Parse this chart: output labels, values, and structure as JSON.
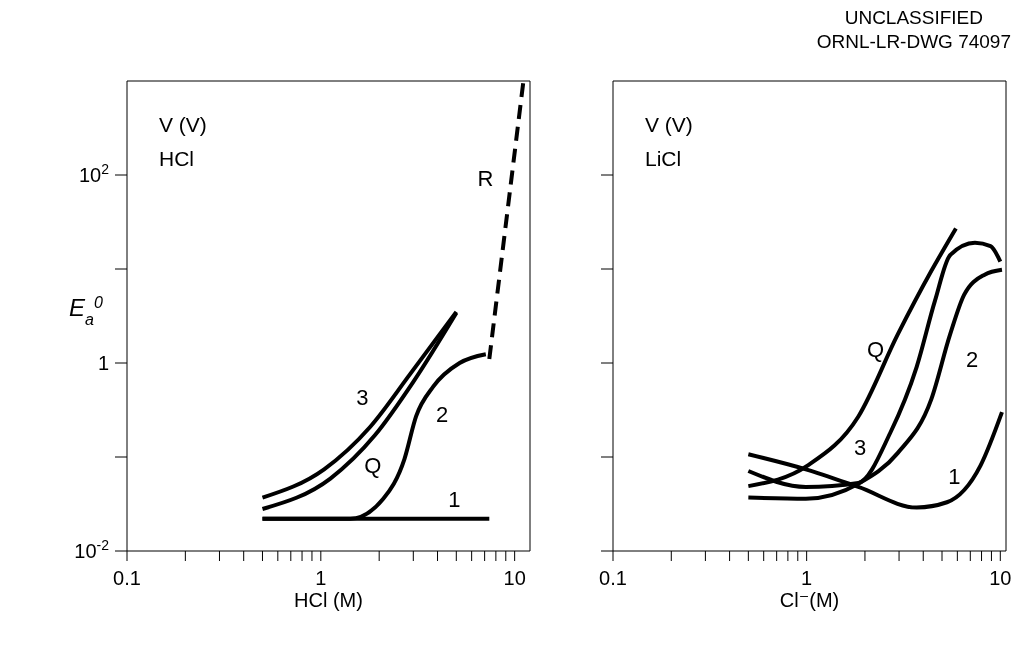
{
  "chart_data": [
    {
      "type": "line",
      "xlabel": "HCl (M)",
      "ylabel": "E$_{a}$$^{0}$",
      "log": "xy",
      "xlim": [
        0.1,
        12
      ],
      "ylim": [
        0.01,
        1000
      ],
      "xticks": [
        {
          "value": 0.1,
          "label": "0.1"
        },
        {
          "value": 0.2,
          "label": null
        },
        {
          "value": 0.3,
          "label": null
        },
        {
          "value": 0.4,
          "label": null
        },
        {
          "value": 0.5,
          "label": null
        },
        {
          "value": 0.6,
          "label": null
        },
        {
          "value": 0.7,
          "label": null
        },
        {
          "value": 0.8,
          "label": null
        },
        {
          "value": 0.9,
          "label": null
        },
        {
          "value": 1,
          "label": "1"
        },
        {
          "value": 2,
          "label": null
        },
        {
          "value": 3,
          "label": null
        },
        {
          "value": 4,
          "label": null
        },
        {
          "value": 5,
          "label": null
        },
        {
          "value": 6,
          "label": null
        },
        {
          "value": 7,
          "label": null
        },
        {
          "value": 8,
          "label": null
        },
        {
          "value": 9,
          "label": null
        },
        {
          "value": 10,
          "label": "10"
        }
      ],
      "yticks": [
        {
          "value": 0.01,
          "label": "10$^{-2}$"
        },
        {
          "value": 0.1,
          "label": null
        },
        1,
        {
          "value": 10,
          "label": null
        },
        {
          "value": 100,
          "label": "10$^{2}$"
        }
      ],
      "annotations": [
        "V (V)",
        "HCl"
      ],
      "series": [
        {
          "name": "1",
          "color": "#000000",
          "line_style": "solid",
          "x": [
            0.5,
            7.4
          ],
          "values": [
            0.022,
            0.022
          ]
        },
        {
          "name": "2",
          "color": "#000000",
          "line_style": "solid",
          "x": [
            0.5,
            1.42,
            2.1,
            2.7,
            3.1,
            3.8,
            5.2,
            7.1
          ],
          "values": [
            0.022,
            0.022,
            0.036,
            0.095,
            0.27,
            0.56,
            1.0,
            1.24
          ]
        },
        {
          "name": "3",
          "color": "#000000",
          "line_style": "solid",
          "x": [
            0.5,
            1.04,
            1.8,
            2.9,
            5.0
          ],
          "values": [
            0.037,
            0.074,
            0.21,
            0.77,
            3.5
          ]
        },
        {
          "name": "Q",
          "color": "#000000",
          "line_style": "solid",
          "x": [
            0.5,
            1.12,
            1.9,
            3.0,
            5.0
          ],
          "values": [
            0.028,
            0.059,
            0.17,
            0.63,
            3.4
          ]
        },
        {
          "name": "R",
          "color": "#000000",
          "line_style": "dashed",
          "x": [
            7.4,
            11.1
          ],
          "values": [
            1.1,
            1000
          ]
        }
      ]
    },
    {
      "type": "line",
      "title": "UNCLASSIFIED",
      "subtitle": "ORNL-LR-DWG 74097",
      "xlabel": "Cl⁻(M)",
      "log": "xy",
      "xlim": [
        0.1,
        10.7
      ],
      "ylim": [
        0.01,
        1000
      ],
      "tick_labels": "x",
      "xticks": [
        {
          "value": 0.1,
          "label": "0.1"
        },
        {
          "value": 0.2,
          "label": null
        },
        {
          "value": 0.3,
          "label": null
        },
        {
          "value": 0.4,
          "label": null
        },
        {
          "value": 0.5,
          "label": null
        },
        {
          "value": 0.6,
          "label": null
        },
        {
          "value": 0.7,
          "label": null
        },
        {
          "value": 0.8,
          "label": null
        },
        {
          "value": 0.9,
          "label": null
        },
        {
          "value": 1,
          "label": "1"
        },
        {
          "value": 2,
          "label": null
        },
        {
          "value": 3,
          "label": null
        },
        {
          "value": 4,
          "label": null
        },
        {
          "value": 5,
          "label": null
        },
        {
          "value": 6,
          "label": null
        },
        {
          "value": 7,
          "label": null
        },
        {
          "value": 8,
          "label": null
        },
        {
          "value": 9,
          "label": null
        },
        {
          "value": 10,
          "label": "10"
        }
      ],
      "yticks": [
        {
          "value": 0.01,
          "label": null
        },
        {
          "value": 0.1,
          "label": null
        },
        {
          "value": 1,
          "label": null
        },
        {
          "value": 10,
          "label": null
        },
        {
          "value": 100,
          "label": null
        }
      ],
      "annotations": [
        "V (V)",
        "LiCl"
      ],
      "series": [
        {
          "name": "1",
          "color": "#000000",
          "line_style": "solid",
          "x": [
            0.5,
            0.99,
            1.85,
            3.7,
            5.3,
            7.9,
            10.2
          ],
          "values": [
            0.107,
            0.074,
            0.048,
            0.029,
            0.033,
            0.081,
            0.3
          ]
        },
        {
          "name": "Q",
          "color": "#000000",
          "line_style": "solid",
          "x": [
            0.5,
            1.01,
            1.85,
            2.95,
            4.4,
            5.9
          ],
          "values": [
            0.049,
            0.081,
            0.27,
            2.0,
            9.5,
            27
          ]
        },
        {
          "name": "3",
          "color": "#000000",
          "line_style": "solid",
          "x": [
            0.5,
            0.99,
            1.85,
            2.7,
            3.7,
            4.6,
            5.5,
            7.4,
            8.9,
            10
          ],
          "values": [
            0.071,
            0.048,
            0.053,
            0.18,
            0.91,
            4.6,
            14,
            19,
            17.5,
            12
          ]
        },
        {
          "name": "2",
          "color": "#000000",
          "line_style": "solid",
          "x": [
            0.5,
            0.99,
            1.85,
            2.95,
            4.4,
            5.5,
            6.5,
            8.3,
            10.2
          ],
          "values": [
            0.037,
            0.036,
            0.052,
            0.11,
            0.41,
            2.0,
            5.3,
            8.7,
            9.8
          ]
        }
      ]
    }
  ]
}
